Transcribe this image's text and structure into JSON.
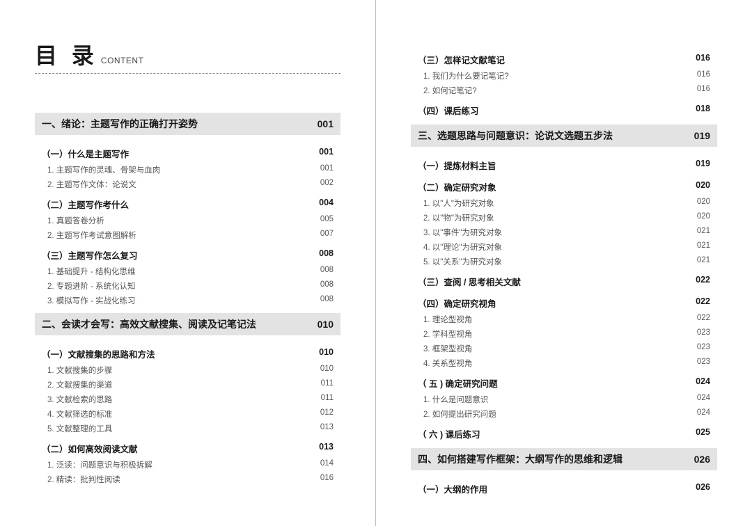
{
  "header": {
    "main": "目 录",
    "sub": "CONTENT"
  },
  "left": [
    {
      "type": "chapter",
      "title": "一、绪论：主题写作的正确打开姿势",
      "page": "001"
    },
    {
      "type": "section",
      "title": "（一）什么是主题写作",
      "page": "001"
    },
    {
      "type": "item",
      "title": "1. 主题写作的灵魂、骨架与血肉",
      "page": "001"
    },
    {
      "type": "item",
      "title": "2. 主题写作文体：论说文",
      "page": "002"
    },
    {
      "type": "section",
      "title": "（二）主题写作考什么",
      "page": "004"
    },
    {
      "type": "item",
      "title": "1. 真题答卷分析",
      "page": "005"
    },
    {
      "type": "item",
      "title": "2. 主题写作考试意图解析",
      "page": "007"
    },
    {
      "type": "section",
      "title": "（三）主题写作怎么复习",
      "page": "008"
    },
    {
      "type": "item",
      "title": "1. 基础提升 - 结构化思维",
      "page": "008"
    },
    {
      "type": "item",
      "title": "2. 专题进阶 - 系统化认知",
      "page": "008"
    },
    {
      "type": "item",
      "title": "3. 模拟写作 - 实战化练习",
      "page": "008"
    },
    {
      "type": "chapter",
      "title": "二、会读才会写：高效文献搜集、阅读及记笔记法",
      "page": "010"
    },
    {
      "type": "section",
      "title": "（一）文献搜集的思路和方法",
      "page": "010"
    },
    {
      "type": "item",
      "title": "1. 文献搜集的步骤",
      "page": "010"
    },
    {
      "type": "item",
      "title": "2. 文献搜集的渠道",
      "page": "011"
    },
    {
      "type": "item",
      "title": "3. 文献检索的思路",
      "page": "011"
    },
    {
      "type": "item",
      "title": "4. 文献筛选的标准",
      "page": "012"
    },
    {
      "type": "item",
      "title": "5. 文献整理的工具",
      "page": "013"
    },
    {
      "type": "section",
      "title": "（二）如何高效阅读文献",
      "page": "013"
    },
    {
      "type": "item",
      "title": "1. 泛读：问题意识与积极拆解",
      "page": "014"
    },
    {
      "type": "item",
      "title": "2. 精读：批判性阅读",
      "page": "016"
    }
  ],
  "right": [
    {
      "type": "section",
      "title": "（三）怎样记文献笔记",
      "page": "016"
    },
    {
      "type": "item",
      "title": "1. 我们为什么要记笔记?",
      "page": "016"
    },
    {
      "type": "item",
      "title": "2. 如何记笔记?",
      "page": "016"
    },
    {
      "type": "section",
      "title": "（四）课后练习",
      "page": "018"
    },
    {
      "type": "chapter",
      "title": "三、选题思路与问题意识：论说文选题五步法",
      "page": "019"
    },
    {
      "type": "section",
      "title": "（一）提炼材料主旨",
      "page": "019"
    },
    {
      "type": "section",
      "title": "（二）确定研究对象",
      "page": "020"
    },
    {
      "type": "item",
      "title": "1. 以\"人\"为研究对象",
      "page": "020"
    },
    {
      "type": "item",
      "title": "2. 以\"物\"为研究对象",
      "page": "020"
    },
    {
      "type": "item",
      "title": "3. 以\"事件\"为研究对象",
      "page": "021"
    },
    {
      "type": "item",
      "title": "4. 以\"理论\"为研究对象",
      "page": "021"
    },
    {
      "type": "item",
      "title": "5. 以\"关系\"为研究对象",
      "page": "021"
    },
    {
      "type": "section",
      "title": "（三）查阅 / 思考相关文献",
      "page": "022"
    },
    {
      "type": "section",
      "title": "（四）确定研究视角",
      "page": "022"
    },
    {
      "type": "item",
      "title": "1. 理论型视角",
      "page": "022"
    },
    {
      "type": "item",
      "title": "2. 学科型视角",
      "page": "023"
    },
    {
      "type": "item",
      "title": "3. 框架型视角",
      "page": "023"
    },
    {
      "type": "item",
      "title": "4. 关系型视角",
      "page": "023"
    },
    {
      "type": "section",
      "title": "（ 五 ) 确定研究问题",
      "page": "024"
    },
    {
      "type": "item",
      "title": "1. 什么是问题意识",
      "page": "024"
    },
    {
      "type": "item",
      "title": "2. 如何提出研究问题",
      "page": "024"
    },
    {
      "type": "section",
      "title": "（ 六 ) 课后练习",
      "page": "025"
    },
    {
      "type": "chapter",
      "title": "四、如何搭建写作框架：大纲写作的思维和逻辑",
      "page": "026"
    },
    {
      "type": "section",
      "title": "（一）大纲的作用",
      "page": "026"
    }
  ]
}
